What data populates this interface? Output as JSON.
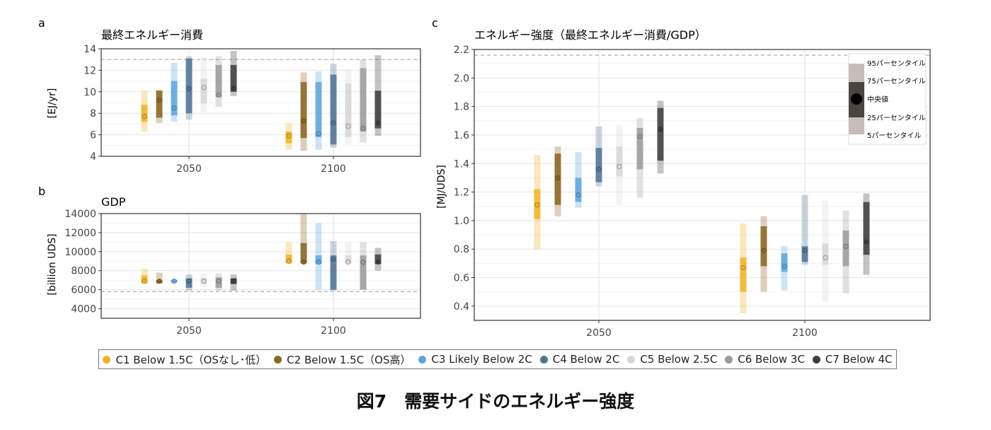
{
  "panel_labels": {
    "a": "a",
    "b": "b",
    "c": "c"
  },
  "caption": "図7　需要サイドのエネルギー強度",
  "legend": [
    {
      "id": "C1",
      "label": "C1 Below 1.5C（OSなし･低）",
      "color": "#f2b122"
    },
    {
      "id": "C2",
      "label": "C2 Below 1.5C（OS高）",
      "color": "#8a6521"
    },
    {
      "id": "C3",
      "label": "C3 Likely Below 2C",
      "color": "#5aa7df"
    },
    {
      "id": "C4",
      "label": "C4 Below 2C",
      "color": "#4f7398"
    },
    {
      "id": "C5",
      "label": "C5 Below 2.5C",
      "color": "#d6d6d6"
    },
    {
      "id": "C6",
      "label": "C6 Below 3C",
      "color": "#9b9b9b"
    },
    {
      "id": "C7",
      "label": "C7 Below 4C",
      "color": "#3d3d3d"
    }
  ],
  "percentile_legend": {
    "labels": [
      "95パーセンタイル",
      "75パーセンタイル",
      "中央値",
      "25パーセンタイル",
      "5パーセンタイル"
    ],
    "colors": {
      "outer": "#c7bdb6",
      "inner": "#4b4441",
      "median": "#000000"
    }
  },
  "chart_data": [
    {
      "type": "box",
      "panel": "a",
      "title": "最終エネルギー消費",
      "ylabel": "[EJ/yr]",
      "ylim": [
        4,
        14
      ],
      "yticks": [
        4,
        6,
        8,
        10,
        12,
        14
      ],
      "categories": [
        "2050",
        "2100"
      ],
      "reference_line": 13,
      "series": [
        {
          "id": "C1",
          "2050": {
            "p5": 6.3,
            "p25": 7.2,
            "median": 7.7,
            "p75": 8.8,
            "p95": 10.1
          },
          "2100": {
            "p5": 4.6,
            "p25": 5.2,
            "median": 5.9,
            "p75": 6.3,
            "p95": 7.1
          }
        },
        {
          "id": "C2",
          "2050": {
            "p5": 7.1,
            "p25": 7.6,
            "median": 9.2,
            "p75": 10.1,
            "p95": 10.2
          },
          "2100": {
            "p5": 4.5,
            "p25": 5.7,
            "median": 7.3,
            "p75": 10.9,
            "p95": 11.8
          }
        },
        {
          "id": "C3",
          "2050": {
            "p5": 7.2,
            "p25": 7.8,
            "median": 8.5,
            "p75": 11.0,
            "p95": 12.7
          },
          "2100": {
            "p5": 4.6,
            "p25": 5.8,
            "median": 6.1,
            "p75": 10.9,
            "p95": 11.9
          }
        },
        {
          "id": "C4",
          "2050": {
            "p5": 7.4,
            "p25": 8.0,
            "median": 10.3,
            "p75": 13.1,
            "p95": 13.3
          },
          "2100": {
            "p5": 4.8,
            "p25": 5.1,
            "median": 7.1,
            "p75": 11.6,
            "p95": 12.6
          }
        },
        {
          "id": "C5",
          "2050": {
            "p5": 8.1,
            "p25": 8.9,
            "median": 10.4,
            "p75": 11.2,
            "p95": 13.2
          },
          "2100": {
            "p5": 5.1,
            "p25": 5.8,
            "median": 6.8,
            "p75": 10.8,
            "p95": 12.1
          }
        },
        {
          "id": "C6",
          "2050": {
            "p5": 8.6,
            "p25": 9.5,
            "median": 9.7,
            "p75": 12.5,
            "p95": 13.3
          },
          "2100": {
            "p5": 5.3,
            "p25": 6.3,
            "median": 6.6,
            "p75": 12.2,
            "p95": 13.0
          }
        },
        {
          "id": "C7",
          "2050": {
            "p5": 9.6,
            "p25": 10.0,
            "median": 10.3,
            "p75": 12.5,
            "p95": 13.8
          },
          "2100": {
            "p5": 5.9,
            "p25": 6.6,
            "median": 7.1,
            "p75": 10.1,
            "p95": 13.4
          }
        }
      ]
    },
    {
      "type": "box",
      "panel": "b",
      "title": "GDP",
      "ylabel": "[billion UDS]",
      "ylim": [
        3000,
        14000
      ],
      "yticks": [
        4000,
        6000,
        8000,
        10000,
        12000,
        14000
      ],
      "categories": [
        "2050",
        "2100"
      ],
      "reference_line": 5800,
      "series": [
        {
          "id": "C1",
          "2050": {
            "p5": 6600,
            "p25": 6700,
            "median": 6900,
            "p75": 7500,
            "p95": 8200
          },
          "2100": {
            "p5": 8700,
            "p25": 8800,
            "median": 9000,
            "p75": 9700,
            "p95": 11000
          }
        },
        {
          "id": "C2",
          "2050": {
            "p5": 6600,
            "p25": 6700,
            "median": 6900,
            "p75": 7000,
            "p95": 7800
          },
          "2100": {
            "p5": 8700,
            "p25": 8800,
            "median": 8900,
            "p75": 10900,
            "p95": 14000
          }
        },
        {
          "id": "C3",
          "2050": {
            "p5": 6700,
            "p25": 6800,
            "median": 6900,
            "p75": 7000,
            "p95": 7100
          },
          "2100": {
            "p5": 6000,
            "p25": 8700,
            "median": 8900,
            "p75": 9600,
            "p95": 13000
          }
        },
        {
          "id": "C4",
          "2050": {
            "p5": 5900,
            "p25": 6200,
            "median": 6900,
            "p75": 7200,
            "p95": 7600
          },
          "2100": {
            "p5": 5900,
            "p25": 6000,
            "median": 9200,
            "p75": 9600,
            "p95": 11100
          }
        },
        {
          "id": "C5",
          "2050": {
            "p5": 6300,
            "p25": 6600,
            "median": 6900,
            "p75": 7200,
            "p95": 7700
          },
          "2100": {
            "p5": 8700,
            "p25": 8800,
            "median": 8900,
            "p75": 9600,
            "p95": 11000
          }
        },
        {
          "id": "C6",
          "2050": {
            "p5": 5900,
            "p25": 6200,
            "median": 6900,
            "p75": 7300,
            "p95": 7700
          },
          "2100": {
            "p5": 6000,
            "p25": 6000,
            "median": 8900,
            "p75": 9600,
            "p95": 11000
          }
        },
        {
          "id": "C7",
          "2050": {
            "p5": 5900,
            "p25": 6600,
            "median": 6900,
            "p75": 7200,
            "p95": 7600
          },
          "2100": {
            "p5": 8000,
            "p25": 8700,
            "median": 8900,
            "p75": 9700,
            "p95": 10400
          }
        }
      ]
    },
    {
      "type": "box",
      "panel": "c",
      "title": "エネルギー強度（最終エネルギー消費/GDP）",
      "ylabel": "[MJ/UDS]",
      "ylim": [
        0.3,
        2.2
      ],
      "yticks": [
        0.4,
        0.6,
        0.8,
        1.0,
        1.2,
        1.4,
        1.6,
        1.8,
        2.0,
        2.2
      ],
      "categories": [
        "2050",
        "2100"
      ],
      "reference_line": 2.16,
      "series": [
        {
          "id": "C1",
          "2050": {
            "p5": 0.8,
            "p25": 1.01,
            "median": 1.11,
            "p75": 1.22,
            "p95": 1.46
          },
          "2100": {
            "p5": 0.35,
            "p25": 0.5,
            "median": 0.67,
            "p75": 0.74,
            "p95": 0.98
          }
        },
        {
          "id": "C2",
          "2050": {
            "p5": 1.03,
            "p25": 1.11,
            "median": 1.3,
            "p75": 1.47,
            "p95": 1.52
          },
          "2100": {
            "p5": 0.5,
            "p25": 0.68,
            "median": 0.79,
            "p75": 0.96,
            "p95": 1.03
          }
        },
        {
          "id": "C3",
          "2050": {
            "p5": 1.09,
            "p25": 1.13,
            "median": 1.18,
            "p75": 1.3,
            "p95": 1.48
          },
          "2100": {
            "p5": 0.51,
            "p25": 0.64,
            "median": 0.68,
            "p75": 0.77,
            "p95": 0.82
          }
        },
        {
          "id": "C4",
          "2050": {
            "p5": 1.24,
            "p25": 1.27,
            "median": 1.36,
            "p75": 1.51,
            "p95": 1.66
          },
          "2100": {
            "p5": 0.69,
            "p25": 0.71,
            "median": 0.79,
            "p75": 0.82,
            "p95": 1.18
          }
        },
        {
          "id": "C5",
          "2050": {
            "p5": 1.11,
            "p25": 1.31,
            "median": 1.38,
            "p75": 1.52,
            "p95": 1.67
          },
          "2100": {
            "p5": 0.43,
            "p25": 0.69,
            "median": 0.74,
            "p75": 0.84,
            "p95": 1.14
          }
        },
        {
          "id": "C6",
          "2050": {
            "p5": 1.16,
            "p25": 1.36,
            "median": 1.59,
            "p75": 1.65,
            "p95": 1.72
          },
          "2100": {
            "p5": 0.49,
            "p25": 0.68,
            "median": 0.82,
            "p75": 0.93,
            "p95": 1.07
          }
        },
        {
          "id": "C7",
          "2050": {
            "p5": 1.33,
            "p25": 1.42,
            "median": 1.64,
            "p75": 1.79,
            "p95": 1.84
          },
          "2100": {
            "p5": 0.62,
            "p25": 0.76,
            "median": 0.85,
            "p75": 1.13,
            "p95": 1.19
          }
        }
      ]
    }
  ]
}
